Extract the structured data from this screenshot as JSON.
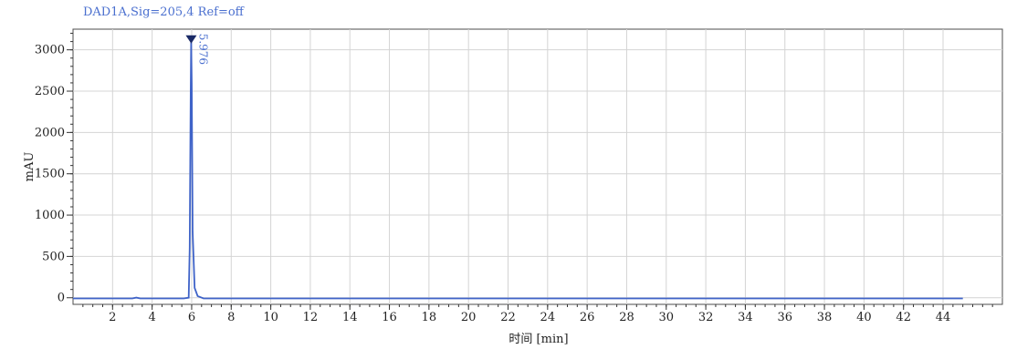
{
  "chart_data": {
    "type": "line",
    "title": "DAD1A,Sig=205,4  Ref=off",
    "xlabel": "时间 [min]",
    "ylabel": "mAU",
    "xlim": [
      0,
      47.0
    ],
    "ylim": [
      -80,
      3250
    ],
    "x_ticks": [
      2,
      4,
      6,
      8,
      10,
      12,
      14,
      16,
      18,
      20,
      22,
      24,
      26,
      28,
      30,
      32,
      34,
      36,
      38,
      40,
      42,
      44
    ],
    "y_ticks": [
      0,
      500,
      1000,
      1500,
      2000,
      2500,
      3000
    ],
    "grid": true,
    "line_color": "#3f63c8",
    "marker_color": "#1a2a66",
    "series": [
      {
        "x": [
          0.0,
          3.0,
          3.2,
          3.4,
          5.6,
          5.85,
          5.9,
          5.95,
          5.976,
          6.0,
          6.05,
          6.15,
          6.3,
          6.6,
          45.0
        ],
        "y": [
          -8,
          -8,
          2,
          -8,
          -8,
          0,
          600,
          2500,
          3110,
          2600,
          800,
          120,
          20,
          -8,
          -8
        ]
      }
    ],
    "peak_labels": [
      {
        "x": 5.976,
        "y": 3110,
        "text": "5.976"
      }
    ]
  }
}
